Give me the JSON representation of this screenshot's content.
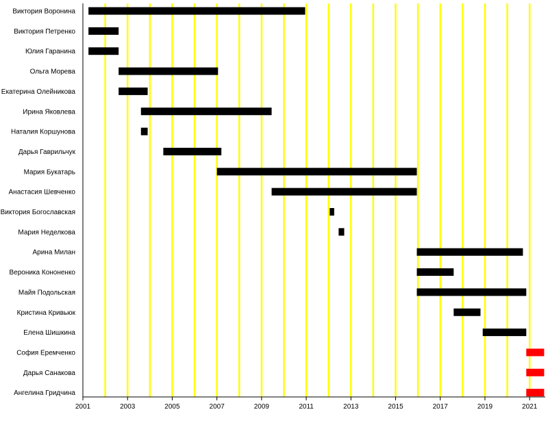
{
  "chart_data": {
    "type": "bar",
    "orientation": "horizontal-timeline",
    "title": "",
    "xlabel": "",
    "ylabel": "",
    "xlim": [
      2001,
      2021.7
    ],
    "x_ticks": [
      "2001",
      "2003",
      "2005",
      "2007",
      "2009",
      "2011",
      "2013",
      "2015",
      "2017",
      "2019",
      "2021"
    ],
    "gridlines": "yellow vertical lines at each year",
    "grid_color": "#ffff00",
    "axis_color": "#000000",
    "colors": {
      "past": "#000000",
      "current": "#ff0000"
    },
    "series": [
      {
        "name": "Виктория Воронина",
        "start": 2001.25,
        "end": 2010.95,
        "status": "past"
      },
      {
        "name": "Виктория Петренко",
        "start": 2001.25,
        "end": 2002.6,
        "status": "past"
      },
      {
        "name": "Юлия Гаранина",
        "start": 2001.25,
        "end": 2002.6,
        "status": "past"
      },
      {
        "name": "Ольга Морева",
        "start": 2002.6,
        "end": 2007.05,
        "status": "past"
      },
      {
        "name": "Екатерина Олейникова",
        "start": 2002.6,
        "end": 2003.9,
        "status": "past"
      },
      {
        "name": "Ирина Яковлева",
        "start": 2003.6,
        "end": 2009.45,
        "status": "past"
      },
      {
        "name": "Наталия Коршунова",
        "start": 2003.6,
        "end": 2003.9,
        "status": "past"
      },
      {
        "name": "Дарья Гаврильчук",
        "start": 2004.6,
        "end": 2007.2,
        "status": "past"
      },
      {
        "name": "Мария Букатарь",
        "start": 2007.0,
        "end": 2015.95,
        "status": "past"
      },
      {
        "name": "Анастасия Шевченко",
        "start": 2009.45,
        "end": 2015.95,
        "status": "past"
      },
      {
        "name": "Виктория Богославская",
        "start": 2012.05,
        "end": 2012.25,
        "status": "past"
      },
      {
        "name": "Мария Неделкова",
        "start": 2012.45,
        "end": 2012.7,
        "status": "past"
      },
      {
        "name": "Арина Милан",
        "start": 2015.95,
        "end": 2020.7,
        "status": "past"
      },
      {
        "name": "Вероника Кононенко",
        "start": 2015.95,
        "end": 2017.6,
        "status": "past"
      },
      {
        "name": "Майя Подольская",
        "start": 2015.95,
        "end": 2020.85,
        "status": "past"
      },
      {
        "name": "Кристина Кривьюк",
        "start": 2017.6,
        "end": 2018.8,
        "status": "past"
      },
      {
        "name": "Елена Шишкина",
        "start": 2018.9,
        "end": 2020.85,
        "status": "past"
      },
      {
        "name": "София Еремченко",
        "start": 2020.85,
        "end": 2021.65,
        "status": "current"
      },
      {
        "name": "Дарья Санакова",
        "start": 2020.85,
        "end": 2021.65,
        "status": "current"
      },
      {
        "name": "Ангелина Гридчина",
        "start": 2020.85,
        "end": 2021.65,
        "status": "current"
      }
    ]
  }
}
